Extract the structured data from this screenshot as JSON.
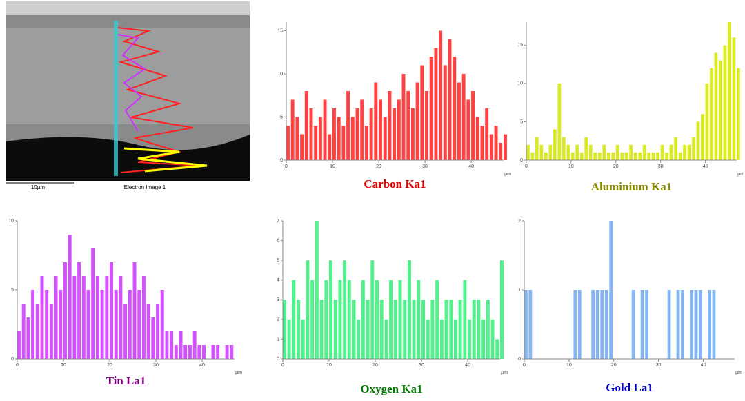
{
  "image": {
    "scale_label": "10µm",
    "caption": "Electron Image 1"
  },
  "chart_data": [
    {
      "type": "bar",
      "title": "Carbon Ka1",
      "title_color": "#e00000",
      "color": "#ff2020",
      "xlabel": "µm",
      "x": [
        0,
        1,
        2,
        3,
        4,
        5,
        6,
        7,
        8,
        9,
        10,
        11,
        12,
        13,
        14,
        15,
        16,
        17,
        18,
        19,
        20,
        21,
        22,
        23,
        24,
        25,
        26,
        27,
        28,
        29,
        30,
        31,
        32,
        33,
        34,
        35,
        36,
        37,
        38,
        39,
        40,
        41,
        42,
        43,
        44,
        45,
        46,
        47
      ],
      "values": [
        4,
        7,
        5,
        3,
        8,
        6,
        4,
        5,
        7,
        3,
        6,
        5,
        4,
        8,
        5,
        6,
        7,
        4,
        6,
        9,
        7,
        5,
        8,
        6,
        7,
        10,
        8,
        6,
        9,
        11,
        8,
        12,
        13,
        15,
        11,
        14,
        12,
        9,
        10,
        7,
        8,
        5,
        4,
        6,
        3,
        4,
        2,
        3
      ],
      "xlim": [
        0,
        47
      ],
      "xticks": [
        0,
        10,
        20,
        30,
        40
      ],
      "ylim": [
        0,
        16
      ],
      "yticks": [
        0,
        5,
        10,
        15
      ]
    },
    {
      "type": "bar",
      "title": "Aluminium Ka1",
      "title_color": "#8a8a00",
      "color": "#d4e800",
      "xlabel": "µm",
      "x": [
        0,
        1,
        2,
        3,
        4,
        5,
        6,
        7,
        8,
        9,
        10,
        11,
        12,
        13,
        14,
        15,
        16,
        17,
        18,
        19,
        20,
        21,
        22,
        23,
        24,
        25,
        26,
        27,
        28,
        29,
        30,
        31,
        32,
        33,
        34,
        35,
        36,
        37,
        38,
        39,
        40,
        41,
        42,
        43,
        44,
        45,
        46,
        47
      ],
      "values": [
        2,
        1,
        3,
        2,
        1,
        2,
        4,
        10,
        3,
        2,
        1,
        2,
        1,
        3,
        2,
        1,
        1,
        2,
        1,
        1,
        2,
        1,
        1,
        2,
        1,
        1,
        2,
        1,
        1,
        1,
        2,
        1,
        2,
        3,
        1,
        2,
        2,
        3,
        5,
        6,
        10,
        12,
        14,
        13,
        15,
        18,
        16,
        12
      ],
      "xlim": [
        0,
        47
      ],
      "xticks": [
        0,
        10,
        20,
        30,
        40
      ],
      "ylim": [
        0,
        18
      ],
      "yticks": [
        0,
        5,
        10,
        15
      ]
    },
    {
      "type": "bar",
      "title": "Tin La1",
      "title_color": "#800080",
      "color": "#cc33ff",
      "xlabel": "µm",
      "x": [
        0,
        1,
        2,
        3,
        4,
        5,
        6,
        7,
        8,
        9,
        10,
        11,
        12,
        13,
        14,
        15,
        16,
        17,
        18,
        19,
        20,
        21,
        22,
        23,
        24,
        25,
        26,
        27,
        28,
        29,
        30,
        31,
        32,
        33,
        34,
        35,
        36,
        37,
        38,
        39,
        40,
        41,
        42,
        43,
        44,
        45,
        46,
        47
      ],
      "values": [
        2,
        4,
        3,
        5,
        4,
        6,
        5,
        4,
        6,
        5,
        7,
        9,
        6,
        7,
        6,
        5,
        8,
        6,
        5,
        6,
        7,
        5,
        6,
        4,
        5,
        7,
        5,
        6,
        4,
        3,
        4,
        5,
        2,
        2,
        1,
        2,
        1,
        1,
        2,
        1,
        1,
        0,
        1,
        1,
        0,
        1,
        1,
        0
      ],
      "xlim": [
        0,
        47
      ],
      "xticks": [
        0,
        10,
        20,
        30,
        40
      ],
      "ylim": [
        0,
        10
      ],
      "yticks": [
        0,
        5,
        10
      ]
    },
    {
      "type": "bar",
      "title": "Oxygen Ka1",
      "title_color": "#007a00",
      "color": "#33ee77",
      "xlabel": "µm",
      "x": [
        0,
        1,
        2,
        3,
        4,
        5,
        6,
        7,
        8,
        9,
        10,
        11,
        12,
        13,
        14,
        15,
        16,
        17,
        18,
        19,
        20,
        21,
        22,
        23,
        24,
        25,
        26,
        27,
        28,
        29,
        30,
        31,
        32,
        33,
        34,
        35,
        36,
        37,
        38,
        39,
        40,
        41,
        42,
        43,
        44,
        45,
        46,
        47
      ],
      "values": [
        3,
        2,
        4,
        3,
        2,
        5,
        4,
        7,
        3,
        4,
        5,
        3,
        4,
        5,
        4,
        3,
        2,
        4,
        3,
        5,
        4,
        3,
        2,
        4,
        3,
        4,
        3,
        5,
        3,
        4,
        3,
        2,
        3,
        4,
        2,
        3,
        3,
        2,
        3,
        4,
        2,
        3,
        3,
        2,
        3,
        2,
        1,
        5
      ],
      "xlim": [
        0,
        47
      ],
      "xticks": [
        0,
        10,
        20,
        30,
        40
      ],
      "ylim": [
        0,
        7
      ],
      "yticks": [
        0,
        1,
        2,
        3,
        4,
        5,
        6,
        7
      ]
    },
    {
      "type": "bar",
      "title": "Gold La1",
      "title_color": "#0000cc",
      "color": "#6fa8f0",
      "xlabel": "µm",
      "x": [
        0,
        1,
        2,
        3,
        4,
        5,
        6,
        7,
        8,
        9,
        10,
        11,
        12,
        13,
        14,
        15,
        16,
        17,
        18,
        19,
        20,
        21,
        22,
        23,
        24,
        25,
        26,
        27,
        28,
        29,
        30,
        31,
        32,
        33,
        34,
        35,
        36,
        37,
        38,
        39,
        40,
        41,
        42,
        43,
        44,
        45,
        46,
        47
      ],
      "values": [
        1,
        1,
        0,
        0,
        0,
        0,
        0,
        0,
        0,
        0,
        0,
        1,
        1,
        0,
        0,
        1,
        1,
        1,
        1,
        2,
        0,
        0,
        0,
        0,
        1,
        0,
        1,
        1,
        0,
        0,
        0,
        0,
        1,
        0,
        1,
        1,
        0,
        1,
        1,
        1,
        0,
        1,
        1,
        0,
        0,
        0,
        0,
        0
      ],
      "xlim": [
        0,
        47
      ],
      "xticks": [
        0,
        10,
        20,
        30,
        40
      ],
      "ylim": [
        0,
        2
      ],
      "yticks": [
        0,
        1,
        2
      ]
    }
  ]
}
